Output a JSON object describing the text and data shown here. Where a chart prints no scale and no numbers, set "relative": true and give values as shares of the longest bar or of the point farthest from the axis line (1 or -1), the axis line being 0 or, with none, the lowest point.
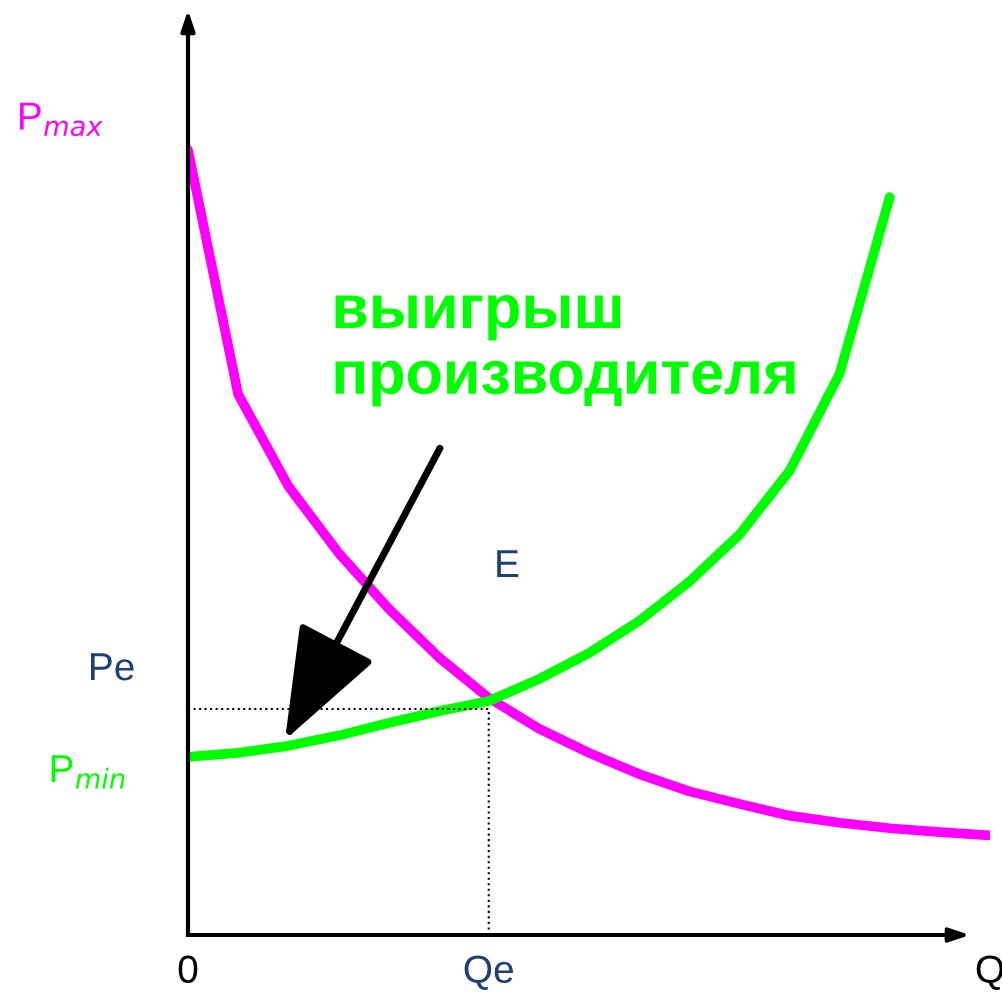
{
  "chart_data": {
    "type": "line",
    "relative": true,
    "tick_labels": "x",
    "marker": "none",
    "line_style": "solid",
    "categories": [
      "0",
      null,
      null,
      null,
      null,
      null,
      "Qe",
      null,
      null,
      null,
      null,
      null,
      null,
      null,
      null,
      null,
      "Q"
    ],
    "series": [
      {
        "color": "#ff00ff",
        "values": [
          1.0,
          0.689,
          0.572,
          0.487,
          0.416,
          0.354,
          0.302,
          0.263,
          0.232,
          0.205,
          0.183,
          0.167,
          0.152,
          0.143,
          0.136,
          0.131,
          0.127
        ]
      },
      {
        "color": "#00ff00",
        "values": [
          0.227,
          0.232,
          0.241,
          0.254,
          0.27,
          0.285,
          0.298,
          0.326,
          0.359,
          0.4,
          0.45,
          0.51,
          0.591,
          0.715,
          0.94,
          null,
          null
        ]
      }
    ],
    "ref_lines": [
      {
        "axis": "y",
        "value": 0.288,
        "label": "Pe",
        "color": "#000000",
        "line_style": "dotted"
      },
      {
        "axis": "x",
        "value": "Qe",
        "color": "#000000",
        "line_style": "dotted"
      }
    ],
    "annotations": [
      {
        "text": "P$_{max}$",
        "x": "0",
        "y": 1.0
      },
      {
        "text": "P$_{min}$",
        "x": "0",
        "y": 0.227
      },
      "E",
      "выигрыш\nпроизводителя"
    ]
  }
}
